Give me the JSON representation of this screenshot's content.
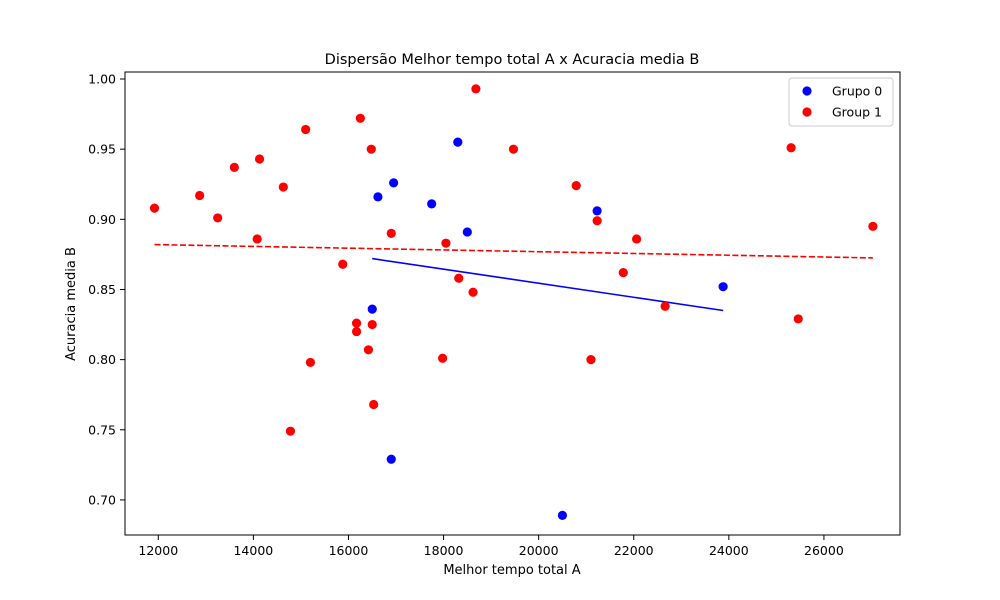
{
  "chart_data": {
    "type": "scatter",
    "title": "Dispersão Melhor tempo total A x Acuracia media B",
    "xlabel": "Melhor tempo total A",
    "ylabel": "Acuracia media B",
    "xlim": [
      11300,
      27600
    ],
    "ylim": [
      0.675,
      1.005
    ],
    "xticks": [
      12000,
      14000,
      16000,
      18000,
      20000,
      22000,
      24000,
      26000
    ],
    "yticks": [
      0.7,
      0.75,
      0.8,
      0.85,
      0.9,
      0.95,
      1.0
    ],
    "grid": false,
    "legend_position": "top-right",
    "series": [
      {
        "name": "Grupo 0",
        "color": "#0000ff",
        "points": [
          [
            16500,
            0.836
          ],
          [
            16620,
            0.916
          ],
          [
            16950,
            0.926
          ],
          [
            17750,
            0.911
          ],
          [
            18300,
            0.955
          ],
          [
            18500,
            0.891
          ],
          [
            21230,
            0.906
          ],
          [
            23880,
            0.852
          ],
          [
            16900,
            0.729
          ],
          [
            20500,
            0.689
          ]
        ],
        "trend": {
          "x": [
            16500,
            23880
          ],
          "y": [
            0.872,
            0.835
          ],
          "style": "solid"
        }
      },
      {
        "name": "Group 1",
        "color": "#ff0000",
        "points": [
          [
            11920,
            0.908
          ],
          [
            12870,
            0.917
          ],
          [
            13250,
            0.901
          ],
          [
            13600,
            0.937
          ],
          [
            14080,
            0.886
          ],
          [
            14130,
            0.943
          ],
          [
            14630,
            0.923
          ],
          [
            15100,
            0.964
          ],
          [
            14780,
            0.749
          ],
          [
            15200,
            0.798
          ],
          [
            15880,
            0.868
          ],
          [
            16170,
            0.826
          ],
          [
            16170,
            0.82
          ],
          [
            16250,
            0.972
          ],
          [
            16420,
            0.807
          ],
          [
            16480,
            0.95
          ],
          [
            16500,
            0.825
          ],
          [
            16530,
            0.768
          ],
          [
            16900,
            0.89
          ],
          [
            17980,
            0.801
          ],
          [
            18050,
            0.883
          ],
          [
            18320,
            0.858
          ],
          [
            18620,
            0.848
          ],
          [
            18680,
            0.993
          ],
          [
            19470,
            0.95
          ],
          [
            20790,
            0.924
          ],
          [
            21100,
            0.8
          ],
          [
            21230,
            0.899
          ],
          [
            21780,
            0.862
          ],
          [
            22060,
            0.886
          ],
          [
            22660,
            0.838
          ],
          [
            25310,
            0.951
          ],
          [
            25460,
            0.829
          ],
          [
            27030,
            0.895
          ]
        ],
        "trend": {
          "x": [
            11920,
            27030
          ],
          "y": [
            0.882,
            0.8725
          ],
          "style": "dashed"
        }
      }
    ]
  }
}
